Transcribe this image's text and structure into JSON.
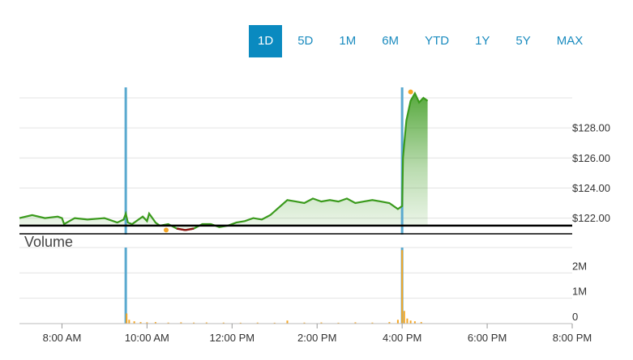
{
  "range_tabs": [
    {
      "label": "1D",
      "active": true
    },
    {
      "label": "5D",
      "active": false
    },
    {
      "label": "1M",
      "active": false
    },
    {
      "label": "6M",
      "active": false
    },
    {
      "label": "YTD",
      "active": false
    },
    {
      "label": "1Y",
      "active": false
    },
    {
      "label": "5Y",
      "active": false
    },
    {
      "label": "MAX",
      "active": false
    }
  ],
  "colors": {
    "accent": "#0a8ac0",
    "price_up": "#3a9a1c",
    "price_down": "#8b1010",
    "volume": "#f5a623",
    "session_marker": "#5aa9cf",
    "baseline": "#000000"
  },
  "chart_data": {
    "type": "line",
    "title": "",
    "volume_label": "Volume",
    "x_unit": "hour of day",
    "x_ticks": [
      {
        "value": 8,
        "label": "8:00 AM"
      },
      {
        "value": 10,
        "label": "10:00 AM"
      },
      {
        "value": 12,
        "label": "12:00 PM"
      },
      {
        "value": 14,
        "label": "2:00 PM"
      },
      {
        "value": 16,
        "label": "4:00 PM"
      },
      {
        "value": 18,
        "label": "6:00 PM"
      },
      {
        "value": 20,
        "label": "8:00 PM"
      }
    ],
    "xlim": [
      7.0,
      20.0
    ],
    "price": {
      "ylim": [
        120.9,
        130.7
      ],
      "y_ticks": [
        {
          "value": 122,
          "label": "$122.00"
        },
        {
          "value": 124,
          "label": "$124.00"
        },
        {
          "value": 126,
          "label": "$126.00"
        },
        {
          "value": 128,
          "label": "$128.00"
        }
      ],
      "baseline": 121.5,
      "session_markers": [
        9.5,
        16.0
      ],
      "series": [
        {
          "x": [
            7.0,
            7.3,
            7.6,
            7.9,
            8.0,
            8.05,
            8.3,
            8.6,
            9.0,
            9.3,
            9.45,
            9.5,
            9.55,
            9.65,
            9.8,
            9.9,
            10.0,
            10.05,
            10.15,
            10.2,
            10.3,
            10.5,
            10.7,
            10.9,
            11.1,
            11.3,
            11.5,
            11.7,
            11.9,
            12.1,
            12.3,
            12.5,
            12.7,
            12.9,
            13.1,
            13.3,
            13.5,
            13.7,
            13.9,
            14.1,
            14.3,
            14.5,
            14.7,
            14.9,
            15.1,
            15.3,
            15.5,
            15.7,
            15.9,
            16.0,
            16.02,
            16.05,
            16.1,
            16.2,
            16.3,
            16.4,
            16.5,
            16.6
          ],
          "y": [
            122.0,
            122.2,
            122.0,
            122.1,
            122.0,
            121.6,
            122.0,
            121.9,
            122.0,
            121.7,
            121.9,
            122.3,
            121.7,
            121.6,
            121.9,
            122.1,
            121.8,
            122.3,
            121.9,
            121.7,
            121.5,
            121.6,
            121.3,
            121.2,
            121.3,
            121.6,
            121.6,
            121.4,
            121.5,
            121.7,
            121.8,
            122.0,
            121.9,
            122.2,
            122.7,
            123.2,
            123.1,
            123.0,
            123.3,
            123.1,
            123.2,
            123.1,
            123.3,
            123.0,
            123.1,
            123.2,
            123.1,
            123.0,
            122.6,
            122.8,
            126.0,
            127.0,
            128.5,
            129.8,
            130.3,
            129.7,
            130.0,
            129.8
          ]
        }
      ],
      "highlights": [
        {
          "x": 10.45,
          "y": 121.2,
          "color": "#f5a623"
        },
        {
          "x": 16.2,
          "y": 130.4,
          "color": "#f5a623"
        }
      ]
    },
    "volume": {
      "ylim": [
        0,
        3000000
      ],
      "y_ticks": [
        {
          "value": 0,
          "label": "0"
        },
        {
          "value": 1000000,
          "label": "1M"
        },
        {
          "value": 2000000,
          "label": "2M"
        }
      ],
      "bars": [
        {
          "x": 9.52,
          "v": 400000
        },
        {
          "x": 9.58,
          "v": 150000
        },
        {
          "x": 9.7,
          "v": 90000
        },
        {
          "x": 9.85,
          "v": 60000
        },
        {
          "x": 10.0,
          "v": 50000
        },
        {
          "x": 10.2,
          "v": 60000
        },
        {
          "x": 10.5,
          "v": 40000
        },
        {
          "x": 10.8,
          "v": 50000
        },
        {
          "x": 11.1,
          "v": 40000
        },
        {
          "x": 11.4,
          "v": 45000
        },
        {
          "x": 11.8,
          "v": 40000
        },
        {
          "x": 12.2,
          "v": 35000
        },
        {
          "x": 12.6,
          "v": 40000
        },
        {
          "x": 13.0,
          "v": 35000
        },
        {
          "x": 13.3,
          "v": 120000
        },
        {
          "x": 13.7,
          "v": 40000
        },
        {
          "x": 14.1,
          "v": 45000
        },
        {
          "x": 14.5,
          "v": 35000
        },
        {
          "x": 14.9,
          "v": 50000
        },
        {
          "x": 15.3,
          "v": 40000
        },
        {
          "x": 15.7,
          "v": 60000
        },
        {
          "x": 15.9,
          "v": 150000
        },
        {
          "x": 16.0,
          "v": 2900000
        },
        {
          "x": 16.05,
          "v": 500000
        },
        {
          "x": 16.12,
          "v": 200000
        },
        {
          "x": 16.2,
          "v": 120000
        },
        {
          "x": 16.3,
          "v": 90000
        },
        {
          "x": 16.45,
          "v": 60000
        }
      ]
    }
  }
}
